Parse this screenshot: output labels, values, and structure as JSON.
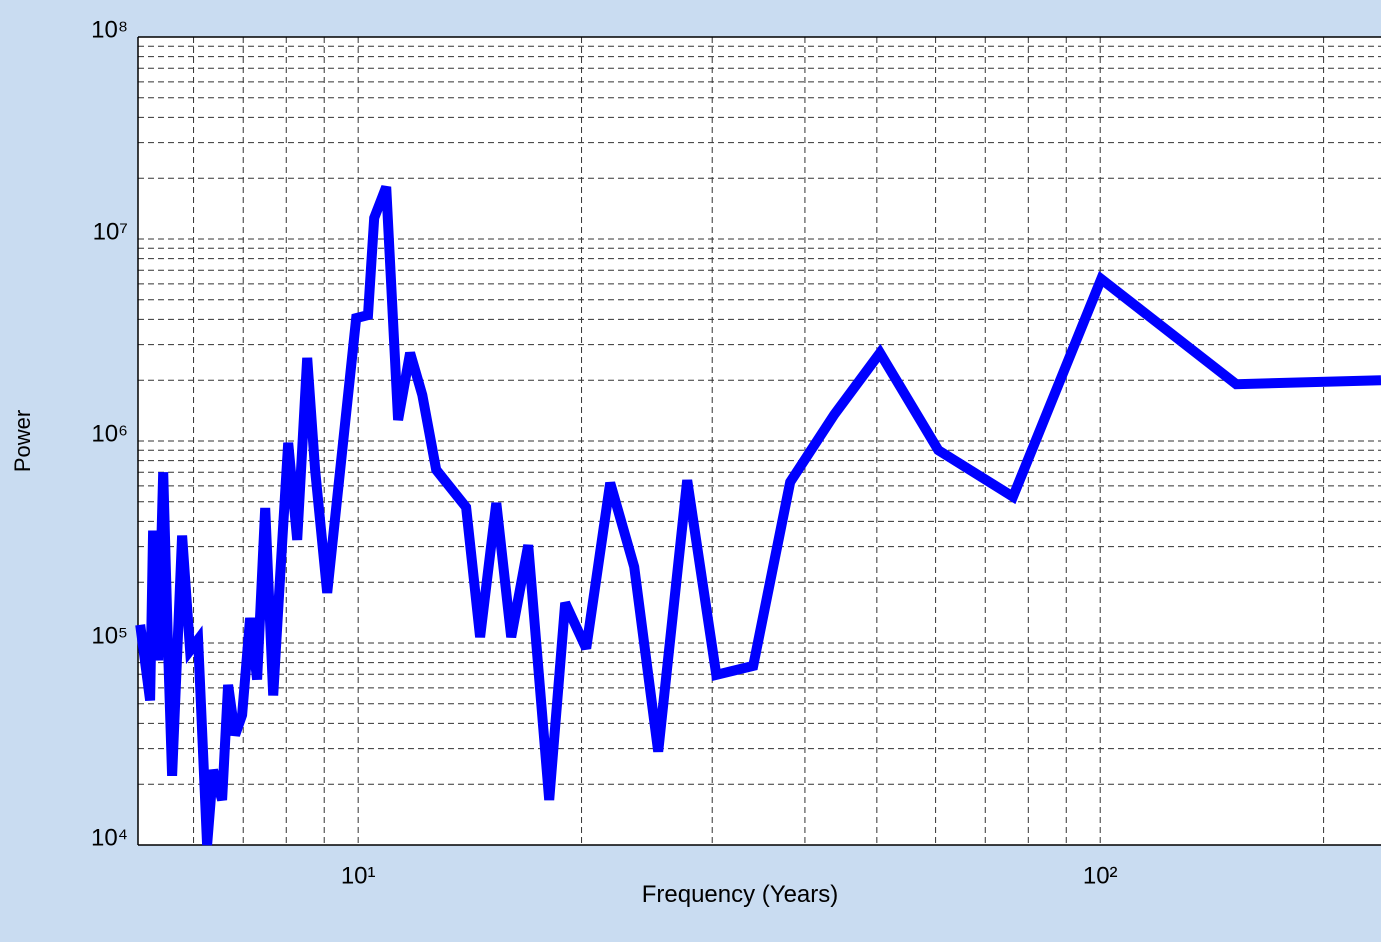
{
  "chart_data": {
    "type": "line",
    "xscale": "log",
    "yscale": "log",
    "grid": true,
    "xlabel": "Frequency (Years)",
    "ylabel": "Power",
    "color": "#0000ff",
    "xlim": [
      5.05,
      239
    ],
    "ylim": [
      10000,
      100000000
    ],
    "xticks": [
      {
        "value": 10,
        "label": "10¹"
      },
      {
        "value": 100,
        "label": "10²"
      }
    ],
    "xminorticks": [
      6,
      7,
      8,
      9,
      20,
      30,
      40,
      50,
      60,
      70,
      80,
      90,
      200
    ],
    "yticks": [
      {
        "value": 10000,
        "label": "10⁴"
      },
      {
        "value": 100000,
        "label": "10⁵"
      },
      {
        "value": 1000000,
        "label": "10⁶"
      },
      {
        "value": 10000000,
        "label": "10⁷"
      },
      {
        "value": 100000000,
        "label": "10⁸"
      }
    ],
    "yminorticks": [
      20000,
      30000,
      40000,
      50000,
      60000,
      70000,
      80000,
      90000,
      200000,
      300000,
      400000,
      500000,
      600000,
      700000,
      800000,
      900000,
      2000000,
      3000000,
      4000000,
      5000000,
      6000000,
      7000000,
      8000000,
      9000000,
      20000000,
      30000000,
      40000000,
      50000000,
      60000000,
      70000000,
      80000000,
      90000000
    ],
    "x": [
      5.085,
      5.244,
      5.292,
      5.376,
      5.46,
      5.545,
      5.614,
      5.79,
      5.936,
      6.085,
      6.257,
      6.375,
      6.556,
      6.68,
      6.826,
      6.976,
      7.151,
      7.309,
      7.494,
      7.682,
      7.852,
      8.049,
      8.276,
      8.538,
      8.75,
      9.083,
      9.94,
      10.31,
      10.51,
      10.91,
      11.32,
      11.75,
      12.2,
      12.74,
      13.98,
      14.6,
      15.35,
      16.08,
      16.95,
      18.09,
      19.01,
      20.29,
      21.86,
      23.55,
      25.37,
      27.76,
      30.38,
      34.07,
      38.21,
      43.81,
      50.5,
      60.5,
      76.3,
      100.3,
      152.5,
      239
    ],
    "values": [
      123000,
      52000,
      360000,
      82000,
      700000,
      92000,
      22000,
      340000,
      92000,
      104000,
      10000,
      23500,
      16700,
      62000,
      35000,
      44000,
      133000,
      66000,
      466000,
      55000,
      217000,
      980000,
      324000,
      2580000,
      720000,
      177000,
      4060000,
      4200000,
      12700000,
      18100000,
      1270000,
      2730000,
      1690000,
      720000,
      470000,
      107000,
      493000,
      107000,
      305000,
      16700,
      158000,
      94000,
      620000,
      238000,
      29000,
      640000,
      69500,
      77000,
      627000,
      1350000,
      2730000,
      900000,
      530000,
      6340000,
      1910000,
      2000000
    ]
  }
}
